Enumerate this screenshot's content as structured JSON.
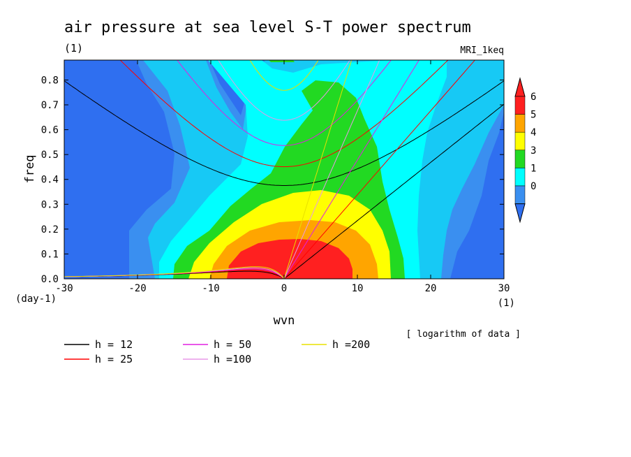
{
  "title": "air pressure at sea level S-T power spectrum",
  "unit_label": "(1)",
  "model_label": "MRI_1keq",
  "note": "[ logarithm of data ]",
  "chart_data": {
    "type": "contour",
    "xlabel": "wvn",
    "ylabel": "freq",
    "x_unit": "(1)",
    "y_unit": "(day-1)",
    "xlim": [
      -30,
      30
    ],
    "ylim": [
      0,
      0.88
    ],
    "x_ticks": [
      "-30",
      "-20",
      "-10",
      "0",
      "10",
      "20",
      "30"
    ],
    "y_ticks": [
      "0.0",
      "0.1",
      "0.2",
      "0.3",
      "0.4",
      "0.5",
      "0.6",
      "0.7",
      "0.8"
    ],
    "colorbar": {
      "labels": [
        "0",
        "1",
        "3",
        "4",
        "5",
        "6"
      ],
      "colors": [
        "#3a8ff0",
        "#17c9f5",
        "#00ffff",
        "#22d922",
        "#ffff00",
        "#ffa500",
        "#ff2020",
        "#2f6ff0"
      ]
    },
    "dispersion_curves": [
      {
        "label": "h = 12",
        "h": 12,
        "color": "#000000"
      },
      {
        "label": "h = 25",
        "h": 25,
        "color": "#ff0000"
      },
      {
        "label": "h = 50",
        "h": 50,
        "color": "#e020e0"
      },
      {
        "label": "h =100",
        "h": 100,
        "color": "#e898e8"
      },
      {
        "label": "h =200",
        "h": 200,
        "color": "#e8e000"
      }
    ]
  }
}
